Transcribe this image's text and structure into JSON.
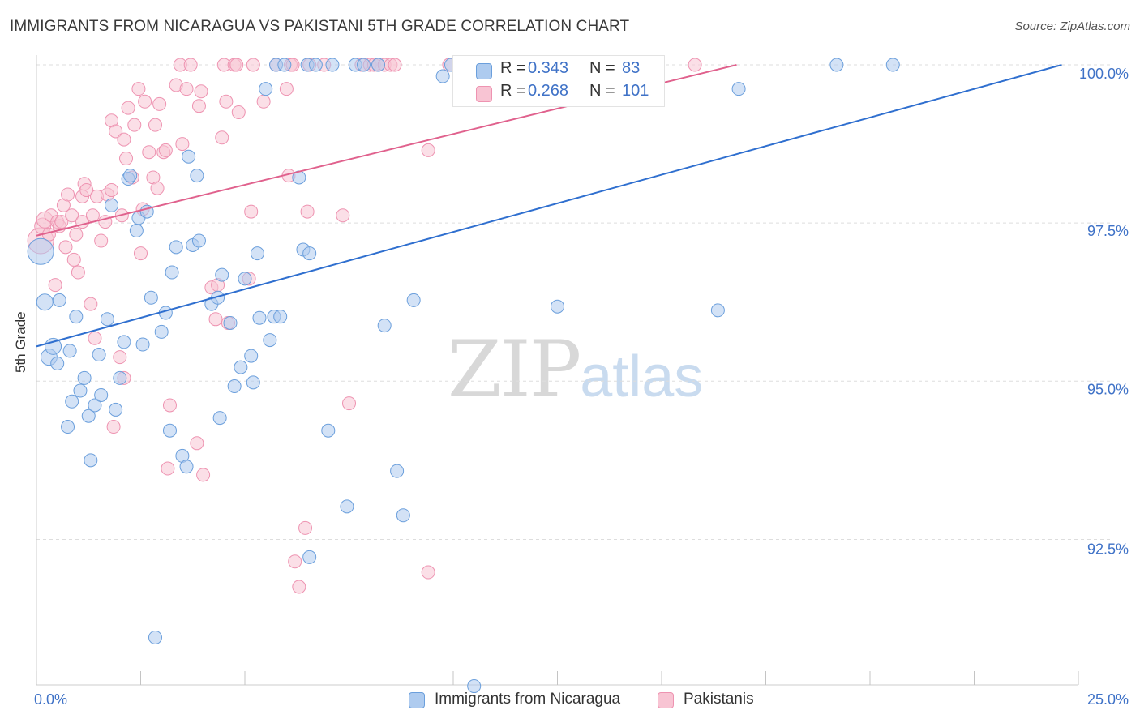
{
  "title": "IMMIGRANTS FROM NICARAGUA VS PAKISTANI 5TH GRADE CORRELATION CHART",
  "source": "Source: ZipAtlas.com",
  "watermark": {
    "zip": "ZIP",
    "atlas": "atlas"
  },
  "legend_top": {
    "r_label": "R =",
    "n_label": "N =",
    "series1": {
      "r": "0.343",
      "n": "83"
    },
    "series2": {
      "r": "0.268",
      "n": "101"
    }
  },
  "legend_bottom": {
    "series1": "Immigrants from Nicaragua",
    "series2": "Pakistanis"
  },
  "colors": {
    "series1_fill": "#aecbef",
    "series1_stroke": "#6b9fdc",
    "series1_line": "#2f6fcf",
    "series2_fill": "#f8c4d3",
    "series2_stroke": "#ee93b1",
    "series2_line": "#e0618d",
    "axis_value": "#3f72c7",
    "grid": "#dddddd"
  },
  "chart_data": {
    "type": "scatter",
    "xlabel": "",
    "ylabel": "5th Grade",
    "xlim": [
      0,
      25
    ],
    "ylim": [
      90.4,
      100.2
    ],
    "x_tick_labels": [
      {
        "value": 0,
        "label": "0.0%"
      },
      {
        "value": 25,
        "label": "25.0%"
      }
    ],
    "y_tick_labels": [
      {
        "value": 92.5,
        "label": "92.5%"
      },
      {
        "value": 95.0,
        "label": "95.0%"
      },
      {
        "value": 97.5,
        "label": "97.5%"
      },
      {
        "value": 100.0,
        "label": "100.0%"
      }
    ],
    "grid": true,
    "series": [
      {
        "name": "Immigrants from Nicaragua",
        "trend": [
          [
            0,
            95.55
          ],
          [
            24.6,
            100.0
          ]
        ],
        "points": [
          [
            0.1,
            97.05,
            1
          ],
          [
            0.2,
            96.25,
            0.6
          ],
          [
            0.3,
            95.38,
            0.6
          ],
          [
            0.4,
            95.55,
            0.6
          ],
          [
            0.5,
            95.28,
            0.5
          ],
          [
            0.55,
            96.28,
            0.5
          ],
          [
            0.75,
            94.28,
            0.5
          ],
          [
            0.8,
            95.48,
            0.5
          ],
          [
            0.85,
            94.68,
            0.5
          ],
          [
            0.95,
            96.02,
            0.5
          ],
          [
            1.05,
            94.85,
            0.5
          ],
          [
            1.15,
            95.05,
            0.5
          ],
          [
            1.25,
            94.45,
            0.5
          ],
          [
            1.3,
            93.75,
            0.5
          ],
          [
            1.4,
            94.62,
            0.5
          ],
          [
            1.5,
            95.42,
            0.5
          ],
          [
            1.55,
            94.78,
            0.5
          ],
          [
            1.7,
            95.98,
            0.5
          ],
          [
            1.8,
            97.78,
            0.5
          ],
          [
            1.9,
            94.55,
            0.5
          ],
          [
            2.0,
            95.05,
            0.5
          ],
          [
            2.1,
            95.62,
            0.5
          ],
          [
            2.2,
            98.2,
            0.5
          ],
          [
            2.25,
            98.25,
            0.5
          ],
          [
            2.4,
            97.38,
            0.5
          ],
          [
            2.45,
            97.58,
            0.5
          ],
          [
            2.55,
            95.58,
            0.5
          ],
          [
            2.65,
            97.68,
            0.5
          ],
          [
            2.75,
            96.32,
            0.5
          ],
          [
            2.85,
            90.95,
            0.5
          ],
          [
            3.0,
            95.78,
            0.5
          ],
          [
            3.1,
            96.08,
            0.5
          ],
          [
            3.2,
            94.22,
            0.5
          ],
          [
            3.25,
            96.72,
            0.5
          ],
          [
            3.35,
            97.12,
            0.5
          ],
          [
            3.5,
            93.82,
            0.5
          ],
          [
            3.6,
            93.65,
            0.5
          ],
          [
            3.65,
            98.55,
            0.5
          ],
          [
            3.75,
            97.15,
            0.5
          ],
          [
            3.85,
            98.25,
            0.5
          ],
          [
            3.9,
            97.22,
            0.5
          ],
          [
            4.2,
            96.22,
            0.5
          ],
          [
            4.35,
            96.32,
            0.5
          ],
          [
            4.4,
            94.42,
            0.5
          ],
          [
            4.45,
            96.68,
            0.5
          ],
          [
            4.65,
            95.92,
            0.5
          ],
          [
            4.75,
            94.92,
            0.5
          ],
          [
            4.9,
            95.22,
            0.5
          ],
          [
            5.0,
            96.62,
            0.5
          ],
          [
            5.15,
            95.4,
            0.5
          ],
          [
            5.2,
            94.98,
            0.5
          ],
          [
            5.3,
            97.02,
            0.5
          ],
          [
            5.35,
            96.0,
            0.5
          ],
          [
            5.5,
            99.62,
            0.5
          ],
          [
            5.6,
            95.65,
            0.5
          ],
          [
            5.7,
            96.02,
            0.5
          ],
          [
            5.75,
            100.0,
            0.5
          ],
          [
            5.85,
            96.02,
            0.5
          ],
          [
            5.95,
            100.0,
            0.5
          ],
          [
            6.3,
            98.22,
            0.5
          ],
          [
            6.4,
            97.08,
            0.5
          ],
          [
            6.5,
            100.0,
            0.5
          ],
          [
            6.55,
            97.02,
            0.5
          ],
          [
            6.55,
            92.22,
            0.5
          ],
          [
            6.7,
            100.0,
            0.5
          ],
          [
            7.0,
            94.22,
            0.5
          ],
          [
            7.1,
            100.0,
            0.5
          ],
          [
            7.45,
            93.02,
            0.5
          ],
          [
            7.65,
            100.0,
            0.5
          ],
          [
            7.85,
            100.0,
            0.5
          ],
          [
            8.2,
            100.0,
            0.5
          ],
          [
            8.35,
            95.88,
            0.5
          ],
          [
            8.65,
            93.58,
            0.5
          ],
          [
            8.8,
            92.88,
            0.5
          ],
          [
            9.05,
            96.28,
            0.5
          ],
          [
            9.75,
            99.82,
            0.5
          ],
          [
            9.95,
            100.0,
            0.5
          ],
          [
            10.5,
            90.18,
            0.5
          ],
          [
            12.5,
            96.18,
            0.5
          ],
          [
            16.35,
            96.12,
            0.5
          ],
          [
            16.85,
            99.62,
            0.5
          ],
          [
            19.2,
            100.0,
            0.5
          ],
          [
            20.55,
            100.0,
            0.5
          ]
        ]
      },
      {
        "name": "Pakistanis",
        "trend": [
          [
            0,
            97.3
          ],
          [
            16.8,
            100.0
          ]
        ],
        "points": [
          [
            0.1,
            97.22,
            1
          ],
          [
            0.15,
            97.45,
            0.6
          ],
          [
            0.2,
            97.55,
            0.6
          ],
          [
            0.3,
            97.32,
            0.5
          ],
          [
            0.35,
            97.62,
            0.5
          ],
          [
            0.45,
            96.52,
            0.5
          ],
          [
            0.5,
            97.52,
            0.5
          ],
          [
            0.55,
            97.45,
            0.5
          ],
          [
            0.6,
            97.52,
            0.5
          ],
          [
            0.65,
            97.78,
            0.5
          ],
          [
            0.7,
            97.12,
            0.5
          ],
          [
            0.75,
            97.95,
            0.5
          ],
          [
            0.85,
            97.62,
            0.5
          ],
          [
            0.9,
            96.92,
            0.5
          ],
          [
            0.95,
            97.32,
            0.5
          ],
          [
            1.0,
            96.72,
            0.5
          ],
          [
            1.1,
            97.52,
            0.5
          ],
          [
            1.1,
            97.92,
            0.5
          ],
          [
            1.15,
            98.12,
            0.5
          ],
          [
            1.2,
            98.02,
            0.5
          ],
          [
            1.3,
            96.22,
            0.5
          ],
          [
            1.35,
            97.62,
            0.5
          ],
          [
            1.4,
            95.68,
            0.5
          ],
          [
            1.45,
            97.92,
            0.5
          ],
          [
            1.55,
            97.22,
            0.5
          ],
          [
            1.65,
            97.52,
            0.5
          ],
          [
            1.7,
            97.95,
            0.5
          ],
          [
            1.8,
            99.12,
            0.5
          ],
          [
            1.8,
            98.02,
            0.5
          ],
          [
            1.85,
            94.28,
            0.5
          ],
          [
            1.9,
            98.95,
            0.5
          ],
          [
            2.0,
            95.38,
            0.5
          ],
          [
            2.05,
            97.62,
            0.5
          ],
          [
            2.1,
            98.82,
            0.5
          ],
          [
            2.1,
            95.05,
            0.5
          ],
          [
            2.15,
            98.52,
            0.5
          ],
          [
            2.2,
            99.32,
            0.5
          ],
          [
            2.3,
            98.22,
            0.5
          ],
          [
            2.35,
            99.05,
            0.5
          ],
          [
            2.45,
            99.62,
            0.5
          ],
          [
            2.5,
            97.02,
            0.5
          ],
          [
            2.55,
            97.72,
            0.5
          ],
          [
            2.6,
            99.42,
            0.5
          ],
          [
            2.7,
            98.62,
            0.5
          ],
          [
            2.8,
            98.22,
            0.5
          ],
          [
            2.85,
            99.05,
            0.5
          ],
          [
            2.9,
            98.05,
            0.5
          ],
          [
            2.95,
            99.38,
            0.5
          ],
          [
            3.05,
            98.62,
            0.5
          ],
          [
            3.1,
            98.65,
            0.5
          ],
          [
            3.15,
            93.62,
            0.5
          ],
          [
            3.2,
            94.62,
            0.5
          ],
          [
            3.35,
            99.68,
            0.5
          ],
          [
            3.45,
            100.0,
            0.5
          ],
          [
            3.5,
            98.75,
            0.5
          ],
          [
            3.6,
            99.62,
            0.5
          ],
          [
            3.7,
            100.0,
            0.5
          ],
          [
            3.85,
            94.02,
            0.5
          ],
          [
            3.9,
            99.35,
            0.5
          ],
          [
            3.95,
            99.58,
            0.5
          ],
          [
            4.0,
            93.52,
            0.5
          ],
          [
            4.2,
            96.48,
            0.5
          ],
          [
            4.3,
            95.98,
            0.5
          ],
          [
            4.35,
            96.52,
            0.5
          ],
          [
            4.45,
            98.85,
            0.5
          ],
          [
            4.5,
            100.0,
            0.5
          ],
          [
            4.55,
            99.42,
            0.5
          ],
          [
            4.6,
            95.92,
            0.5
          ],
          [
            4.75,
            100.0,
            0.5
          ],
          [
            4.8,
            100.0,
            0.5
          ],
          [
            4.85,
            99.25,
            0.5
          ],
          [
            5.1,
            96.62,
            0.5
          ],
          [
            5.15,
            97.68,
            0.5
          ],
          [
            5.2,
            100.0,
            0.5
          ],
          [
            5.45,
            99.42,
            0.5
          ],
          [
            5.75,
            100.0,
            0.5
          ],
          [
            6.0,
            99.62,
            0.5
          ],
          [
            6.05,
            98.25,
            0.5
          ],
          [
            6.1,
            100.0,
            0.5
          ],
          [
            6.15,
            100.0,
            0.5
          ],
          [
            6.2,
            92.15,
            0.5
          ],
          [
            6.3,
            91.75,
            0.5
          ],
          [
            6.45,
            92.68,
            0.5
          ],
          [
            6.5,
            97.68,
            0.5
          ],
          [
            6.55,
            100.0,
            0.5
          ],
          [
            6.9,
            100.0,
            0.5
          ],
          [
            7.35,
            97.62,
            0.5
          ],
          [
            7.5,
            94.65,
            0.5
          ],
          [
            7.8,
            100.0,
            0.5
          ],
          [
            8.0,
            100.0,
            0.5
          ],
          [
            8.1,
            100.0,
            0.5
          ],
          [
            8.2,
            100.0,
            0.5
          ],
          [
            8.35,
            100.0,
            0.5
          ],
          [
            8.5,
            100.0,
            0.5
          ],
          [
            8.6,
            100.0,
            0.5
          ],
          [
            9.4,
            91.98,
            0.5
          ],
          [
            9.4,
            98.65,
            0.5
          ],
          [
            9.9,
            100.0,
            0.5
          ],
          [
            12.2,
            100.0,
            0.5
          ],
          [
            14.5,
            100.0,
            0.5
          ],
          [
            15.8,
            100.0,
            0.5
          ]
        ]
      }
    ]
  }
}
